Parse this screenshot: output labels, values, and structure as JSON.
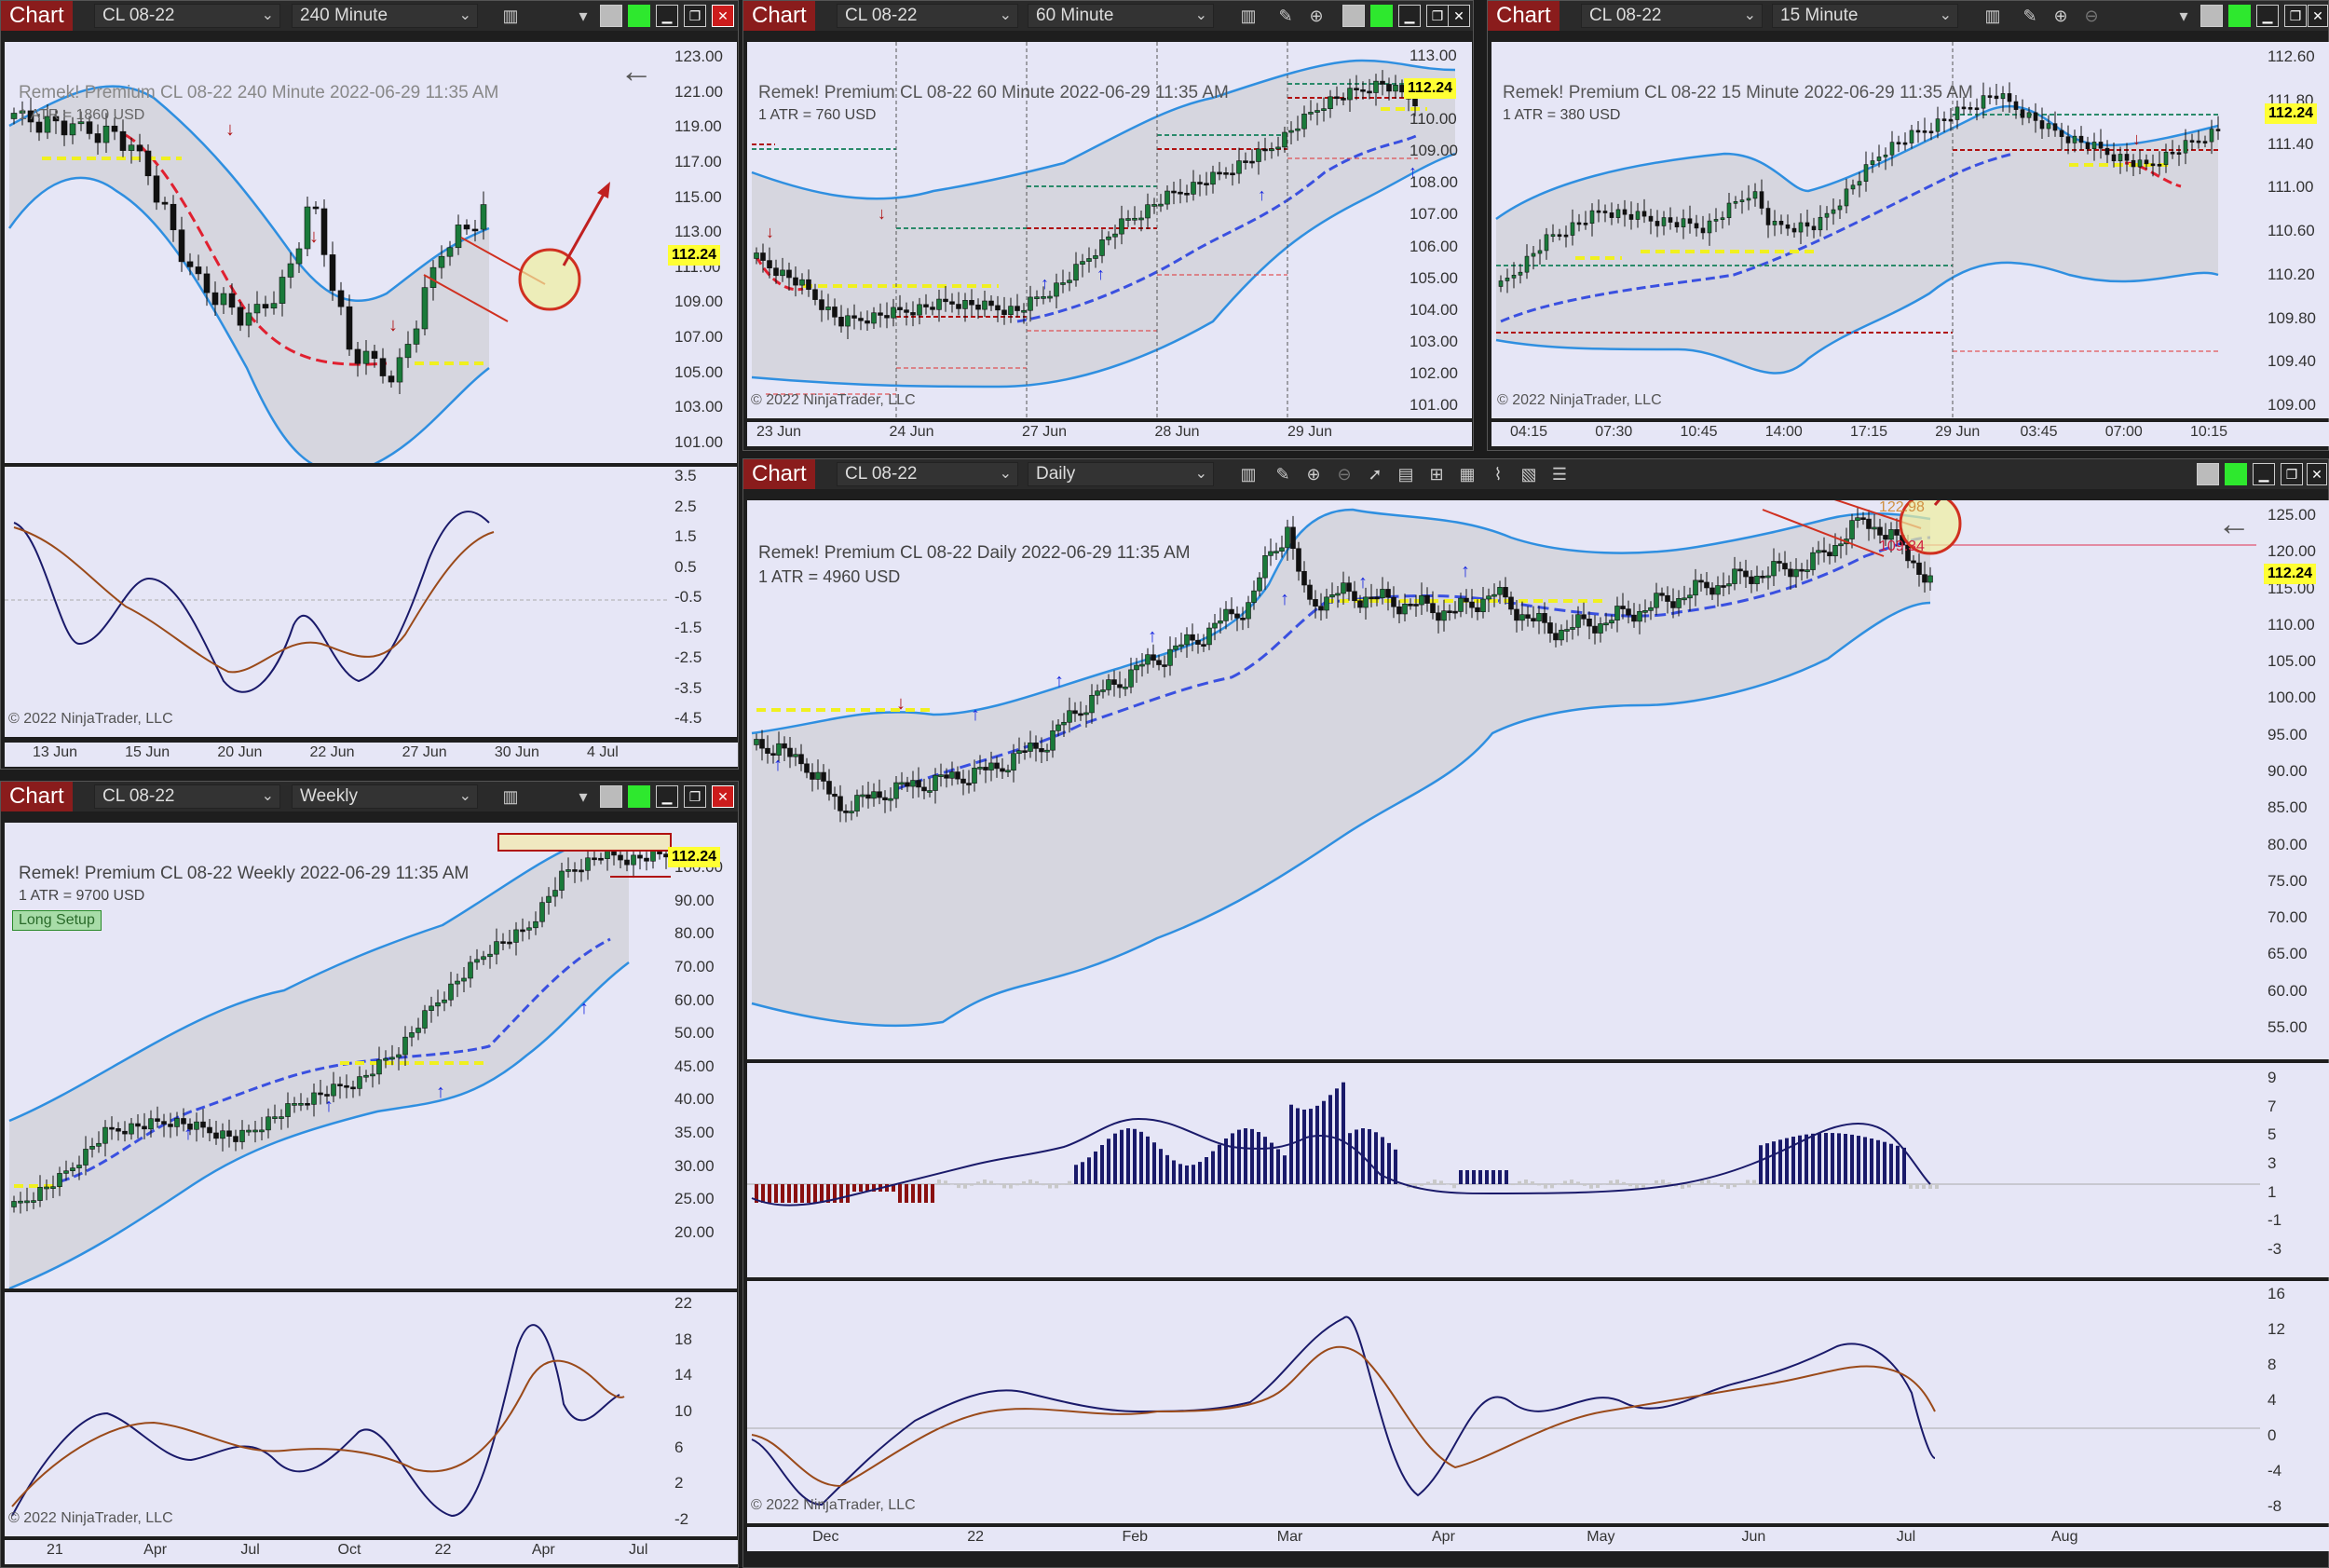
{
  "windows": {
    "w240": {
      "tag": "Chart",
      "instrument": "CL 08-22",
      "interval": "240 Minute",
      "header": "Remek!  Premium  CL 08-22  240 Minute  2022-06-29 11:35 AM",
      "atr": "1 ATR = 1860 USD",
      "price_label": "112.24",
      "copyright": "© 2022 NinjaTrader, LLC",
      "y_ticks": [
        "123.00",
        "121.00",
        "119.00",
        "117.00",
        "115.00",
        "113.00",
        "111.00",
        "109.00",
        "107.00",
        "105.00",
        "103.00",
        "101.00"
      ],
      "osc_ticks": [
        "3.5",
        "2.5",
        "1.5",
        "0.5",
        "-0.5",
        "-1.5",
        "-2.5",
        "-3.5",
        "-4.5"
      ],
      "x_ticks": [
        "13 Jun",
        "15 Jun",
        "20 Jun",
        "22 Jun",
        "27 Jun",
        "30 Jun",
        "4 Jul"
      ]
    },
    "w60": {
      "tag": "Chart",
      "instrument": "CL 08-22",
      "interval": "60 Minute",
      "header": "Remek!  Premium  CL 08-22  60 Minute  2022-06-29 11:35 AM",
      "atr": "1 ATR = 760 USD",
      "price_label": "112.24",
      "copyright": "© 2022 NinjaTrader, LLC",
      "y_ticks": [
        "113.00",
        "111.00",
        "110.00",
        "109.00",
        "108.00",
        "107.00",
        "106.00",
        "105.00",
        "104.00",
        "103.00",
        "102.00",
        "101.00"
      ],
      "x_ticks": [
        "23 Jun",
        "24 Jun",
        "27 Jun",
        "28 Jun",
        "29 Jun"
      ]
    },
    "w15": {
      "tag": "Chart",
      "instrument": "CL 08-22",
      "interval": "15 Minute",
      "header": "Remek!  Premium  CL 08-22  15 Minute  2022-06-29 11:35 AM",
      "atr": "1 ATR = 380 USD",
      "price_label": "112.24",
      "copyright": "© 2022 NinjaTrader, LLC",
      "y_ticks": [
        "112.60",
        "111.80",
        "111.40",
        "111.00",
        "110.60",
        "110.20",
        "109.80",
        "109.40",
        "109.00"
      ],
      "x_ticks": [
        "04:15",
        "07:30",
        "10:45",
        "14:00",
        "17:15",
        "29 Jun",
        "03:45",
        "07:00",
        "10:15"
      ]
    },
    "wWeekly": {
      "tag": "Chart",
      "instrument": "CL 08-22",
      "interval": "Weekly",
      "header": "Remek!  Premium  CL 08-22  Weekly  2022-06-29 11:35 AM",
      "atr": "1 ATR = 9700 USD",
      "badge": "Long Setup",
      "price_label": "112.24",
      "copyright": "© 2022 NinjaTrader, LLC",
      "y_ticks": [
        "100.00",
        "90.00",
        "80.00",
        "70.00",
        "60.00",
        "50.00",
        "45.00",
        "40.00",
        "35.00",
        "30.00",
        "25.00",
        "20.00"
      ],
      "osc_ticks": [
        "22",
        "18",
        "14",
        "10",
        "6",
        "2",
        "-2"
      ],
      "x_ticks": [
        "21",
        "Apr",
        "Jul",
        "Oct",
        "22",
        "Apr",
        "Jul"
      ]
    },
    "wDaily": {
      "tag": "Chart",
      "instrument": "CL 08-22",
      "interval": "Daily",
      "header": "Remek!  Premium  CL 08-22  Daily  2022-06-29 11:35 AM",
      "atr": "1 ATR = 4960 USD",
      "price_label": "112.24",
      "level_upper": "122.98",
      "level_lower": "109.34",
      "copyright": "© 2022 NinjaTrader, LLC",
      "y_ticks": [
        "125.00",
        "120.00",
        "115.00",
        "110.00",
        "105.00",
        "100.00",
        "95.00",
        "90.00",
        "85.00",
        "80.00",
        "75.00",
        "70.00",
        "65.00",
        "60.00",
        "55.00"
      ],
      "hist_ticks": [
        "9",
        "7",
        "5",
        "3",
        "1",
        "-1",
        "-3"
      ],
      "osc_ticks": [
        "16",
        "12",
        "8",
        "4",
        "0",
        "-4",
        "-8"
      ],
      "x_ticks": [
        "Dec",
        "22",
        "Feb",
        "Mar",
        "Apr",
        "May",
        "Jun",
        "Jul",
        "Aug"
      ]
    }
  },
  "colors": {
    "bg_pane": "#e6e6f6",
    "band": "#2f8fe0",
    "bull": "#1a7a3a",
    "bear": "#8a1010",
    "titlebar": "#2a2a2a",
    "chart_tag": "#8a1c1c"
  }
}
